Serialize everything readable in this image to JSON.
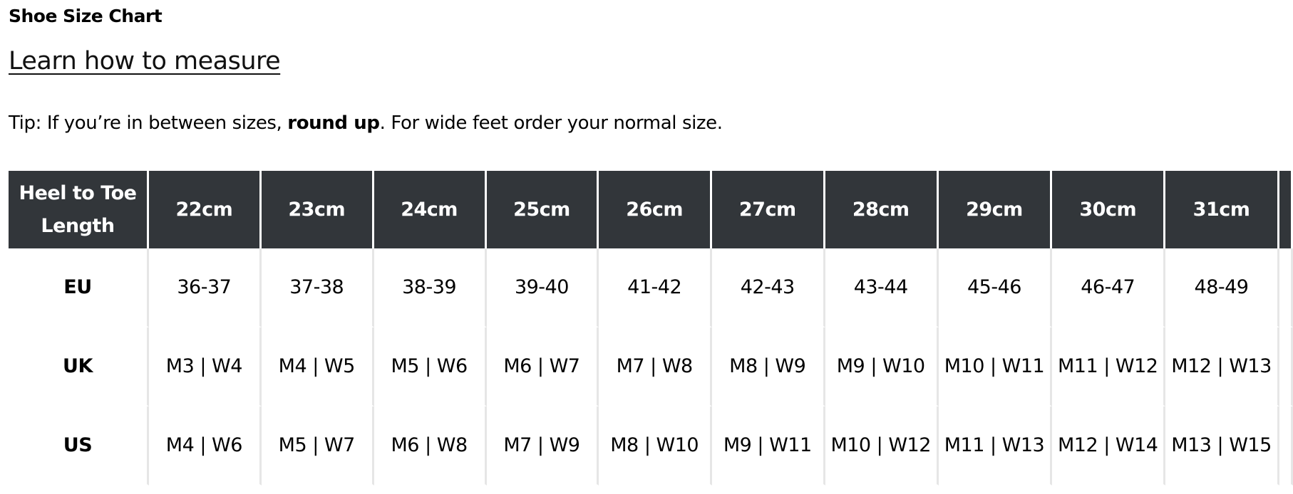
{
  "title": "Shoe Size Chart",
  "link": "Learn how to measure",
  "tip": {
    "before": "Tip: If you’re in between sizes, ",
    "bold": "round up",
    "after": ". For wide feet order your normal size."
  },
  "colors": {
    "header_bg": "#32363a",
    "header_text": "#ffffff",
    "grid": "#e6e6e6"
  },
  "table": {
    "corner": "Heel to Toe Length",
    "columns": [
      "22cm",
      "23cm",
      "24cm",
      "25cm",
      "26cm",
      "27cm",
      "28cm",
      "29cm",
      "30cm",
      "31cm"
    ],
    "rows": [
      {
        "label": "EU",
        "cells": [
          "36-37",
          "37-38",
          "38-39",
          "39-40",
          "41-42",
          "42-43",
          "43-44",
          "45-46",
          "46-47",
          "48-49"
        ]
      },
      {
        "label": "UK",
        "cells": [
          "M3 | W4",
          "M4 | W5",
          "M5 | W6",
          "M6 | W7",
          "M7 | W8",
          "M8 | W9",
          "M9 | W10",
          "M10 | W11",
          "M11 | W12",
          "M12 | W13"
        ]
      },
      {
        "label": "US",
        "cells": [
          "M4 | W6",
          "M5 | W7",
          "M6 | W8",
          "M7 | W9",
          "M8 | W10",
          "M9 | W11",
          "M10 | W12",
          "M11 | W13",
          "M12 | W14",
          "M13 | W15"
        ]
      }
    ]
  }
}
